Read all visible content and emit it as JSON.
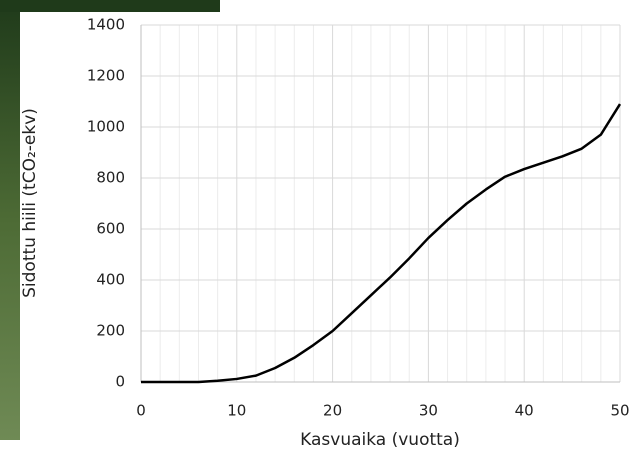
{
  "chart_data": {
    "type": "line",
    "xlabel": "Kasvuaika (vuotta)",
    "ylabel": "Sidottu hiili (tCO₂-ekv)",
    "x": [
      0,
      2,
      4,
      6,
      8,
      10,
      12,
      14,
      16,
      18,
      20,
      22,
      24,
      26,
      28,
      30,
      32,
      34,
      36,
      38,
      40,
      42,
      44,
      46,
      48,
      50
    ],
    "values": [
      0,
      0,
      0,
      0,
      5,
      12,
      25,
      55,
      95,
      145,
      200,
      270,
      340,
      410,
      485,
      565,
      635,
      700,
      755,
      805,
      835,
      860,
      885,
      915,
      970,
      1090
    ],
    "color": "#000000",
    "xlim": [
      0,
      50
    ],
    "xticks": [
      0,
      10,
      20,
      30,
      40,
      50
    ],
    "xminorticks": [
      2,
      4,
      6,
      8,
      12,
      14,
      16,
      18,
      22,
      24,
      26,
      28,
      32,
      34,
      36,
      38,
      42,
      44,
      46,
      48
    ],
    "ylim": [
      0,
      1400
    ],
    "yticks": [
      0,
      200,
      400,
      600,
      800,
      1000,
      1200,
      1400
    ],
    "grid": true
  }
}
